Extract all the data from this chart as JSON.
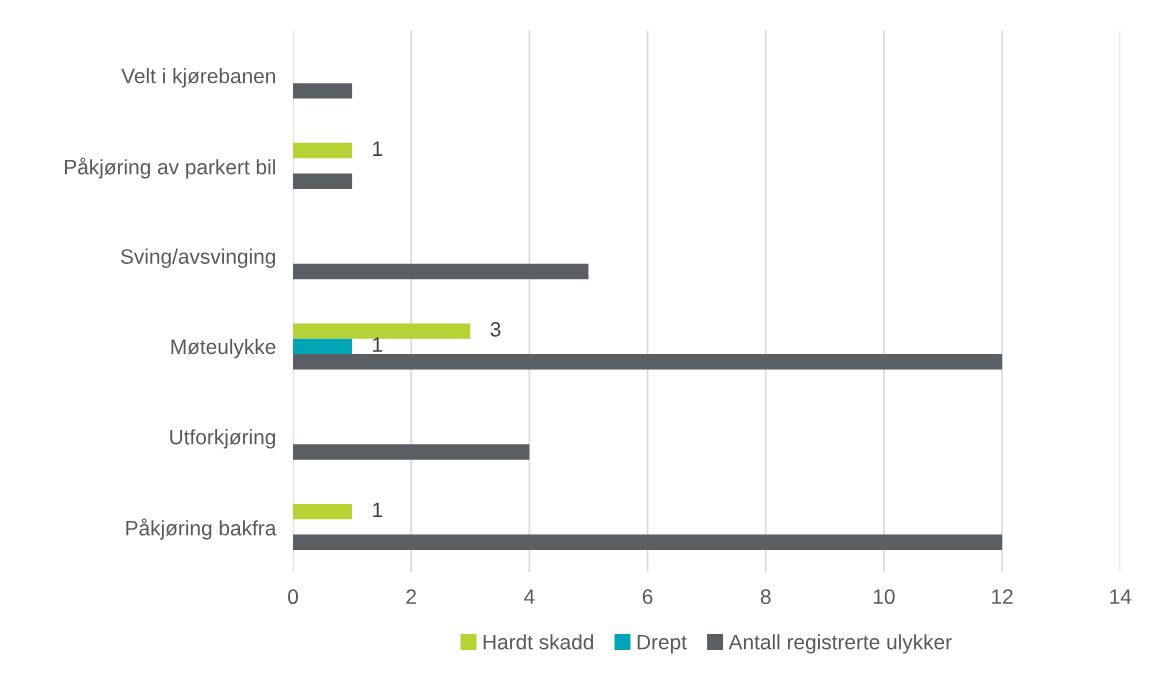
{
  "chart_data": {
    "type": "bar",
    "orientation": "horizontal",
    "categories": [
      "Velt i kjørebanen",
      "Påkjøring av parkert bil",
      "Sving/avsvinging",
      "Møteulykke",
      "Utforkjøring",
      "Påkjøring bakfra"
    ],
    "series": [
      {
        "name": "Hardt skadd",
        "color": "#b5d334",
        "values": [
          null,
          1,
          null,
          3,
          null,
          1
        ],
        "value_labels": [
          null,
          "1",
          null,
          "3",
          null,
          "1"
        ]
      },
      {
        "name": "Drept",
        "color": "#00a5b5",
        "values": [
          null,
          null,
          null,
          1,
          null,
          null
        ],
        "value_labels": [
          null,
          null,
          null,
          "1",
          null,
          null
        ]
      },
      {
        "name": "Antall registrerte ulykker",
        "color": "#595f63",
        "values": [
          1,
          1,
          5,
          12,
          4,
          12
        ]
      }
    ],
    "xlim": [
      0,
      14
    ],
    "xticks": [
      0,
      2,
      4,
      6,
      8,
      10,
      12,
      14
    ],
    "grid": "x",
    "legend": "bottom"
  }
}
